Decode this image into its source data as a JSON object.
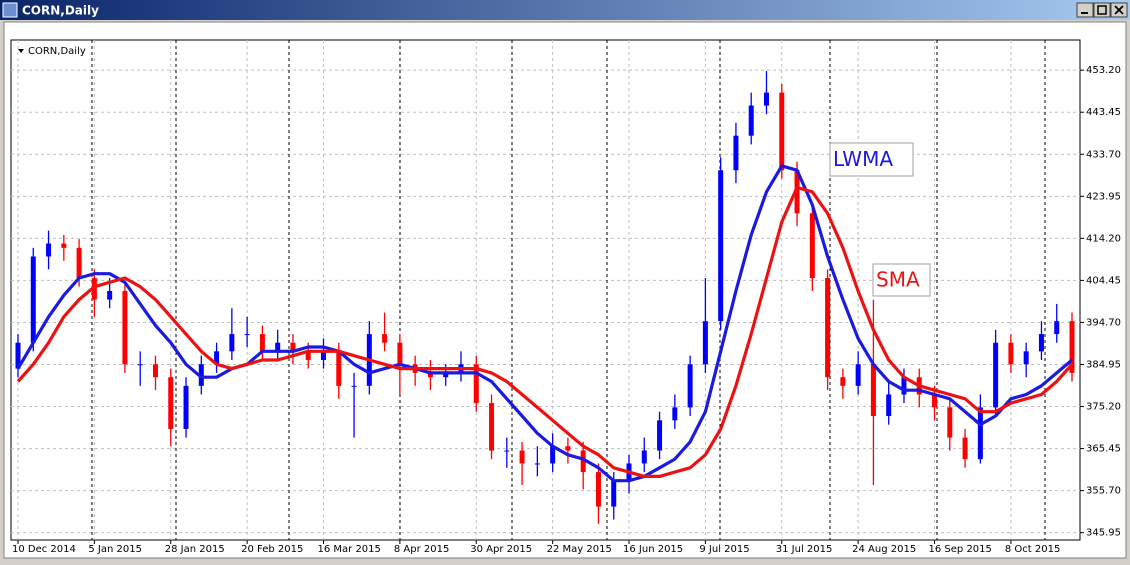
{
  "chart_data": {
    "type": "candlestick",
    "title": "CORN,Daily",
    "label": "CORN,Daily",
    "categories": [
      "10 Dec 2014",
      null,
      null,
      null,
      null,
      "5 Jan 2015",
      null,
      null,
      null,
      null,
      "28 Jan 2015",
      null,
      null,
      null,
      null,
      "20 Feb 2015",
      null,
      null,
      null,
      null,
      "16 Mar 2015",
      null,
      null,
      null,
      null,
      "8 Apr 2015",
      null,
      null,
      null,
      null,
      "30 Apr 2015",
      null,
      null,
      null,
      null,
      "22 May 2015",
      null,
      null,
      null,
      null,
      "16 Jun 2015",
      null,
      null,
      null,
      null,
      "9 Jul 2015",
      null,
      null,
      null,
      null,
      "31 Jul 2015",
      null,
      null,
      null,
      null,
      "24 Aug 2015",
      null,
      null,
      null,
      null,
      "16 Sep 2015",
      null,
      null,
      null,
      null,
      "8 Oct 2015",
      null,
      null,
      null,
      null
    ],
    "open": [
      384,
      390,
      410,
      413,
      412,
      405,
      400,
      402,
      385,
      385,
      382,
      370,
      380,
      385,
      388,
      392,
      392,
      388,
      390,
      388,
      386,
      388,
      380,
      380,
      392,
      390,
      385,
      383,
      382,
      383,
      385,
      376,
      365,
      365,
      362,
      362,
      366,
      365,
      360,
      352,
      358,
      362,
      365,
      372,
      375,
      385,
      395,
      430,
      438,
      445,
      448,
      430,
      420,
      405,
      382,
      380,
      385,
      373,
      378,
      382,
      378,
      375,
      368,
      363,
      375,
      390,
      385,
      388,
      392,
      395
    ],
    "high": [
      392,
      412,
      416,
      415,
      414,
      407,
      405,
      404,
      388,
      387,
      384,
      382,
      387,
      390,
      398,
      396,
      394,
      393,
      392,
      390,
      391,
      390,
      383,
      395,
      397,
      392,
      387,
      386,
      385,
      388,
      387,
      378,
      368,
      367,
      366,
      369,
      368,
      367,
      362,
      360,
      364,
      368,
      374,
      378,
      387,
      405,
      433,
      441,
      448,
      453,
      450,
      432,
      422,
      407,
      384,
      388,
      400,
      381,
      384,
      384,
      380,
      377,
      370,
      378,
      393,
      392,
      390,
      395,
      399,
      397
    ],
    "low": [
      382,
      388,
      407,
      409,
      403,
      396,
      398,
      383,
      380,
      379,
      366,
      368,
      378,
      383,
      386,
      389,
      386,
      386,
      385,
      384,
      384,
      377,
      368,
      378,
      388,
      378,
      380,
      379,
      380,
      381,
      374,
      363,
      361,
      357,
      359,
      360,
      362,
      356,
      348,
      349,
      355,
      360,
      363,
      370,
      373,
      383,
      393,
      427,
      436,
      443,
      428,
      417,
      402,
      379,
      377,
      378,
      357,
      371,
      376,
      375,
      372,
      365,
      361,
      362,
      373,
      383,
      382,
      386,
      390,
      381
    ],
    "close": [
      390,
      410,
      413,
      412,
      405,
      400,
      402,
      385,
      385,
      382,
      370,
      380,
      385,
      388,
      392,
      392,
      388,
      390,
      388,
      386,
      388,
      380,
      380,
      392,
      390,
      385,
      383,
      382,
      383,
      385,
      376,
      365,
      365,
      362,
      362,
      366,
      365,
      360,
      352,
      358,
      362,
      365,
      372,
      375,
      385,
      395,
      430,
      438,
      445,
      448,
      430,
      420,
      405,
      382,
      380,
      385,
      373,
      378,
      382,
      378,
      375,
      368,
      363,
      375,
      390,
      385,
      388,
      392,
      395,
      383
    ],
    "up_color": "#0000ff",
    "down_color": "#ff0000",
    "series": [
      {
        "name": "LWMA",
        "color": "#1a1ae0",
        "values": [
          384,
          390,
          396,
          401,
          405,
          406,
          406,
          404,
          399,
          394,
          390,
          385,
          382,
          382,
          384,
          385,
          388,
          388,
          388,
          389,
          389,
          388,
          385,
          383,
          384,
          385,
          384,
          383,
          383,
          383,
          383,
          381,
          377,
          373,
          369,
          366,
          364,
          363,
          361,
          358,
          358,
          359,
          361,
          363,
          367,
          374,
          388,
          402,
          415,
          425,
          431,
          430,
          422,
          410,
          400,
          391,
          385,
          381,
          379,
          379,
          378,
          377,
          374,
          371,
          373,
          377,
          378,
          380,
          383,
          386
        ]
      },
      {
        "name": "SMA",
        "color": "#ee1111",
        "values": [
          381,
          385,
          390,
          396,
          400,
          403,
          404,
          405,
          403,
          400,
          396,
          392,
          388,
          385,
          384,
          385,
          386,
          386,
          387,
          388,
          388,
          388,
          387,
          386,
          385,
          384,
          384,
          384,
          384,
          384,
          384,
          383,
          381,
          378,
          375,
          372,
          369,
          366,
          364,
          361,
          360,
          359,
          359,
          360,
          361,
          364,
          370,
          380,
          392,
          405,
          418,
          426,
          425,
          420,
          412,
          402,
          393,
          386,
          382,
          380,
          379,
          378,
          377,
          374,
          374,
          376,
          377,
          378,
          381,
          385
        ]
      }
    ],
    "ylim": [
      344.25,
      460.2
    ],
    "yticks": [
      345.95,
      {
        "value": 355.7,
        "label": "355.70"
      },
      365.45,
      {
        "value": 375.2,
        "label": "375.20"
      },
      384.95,
      {
        "value": 394.7,
        "label": "394.70"
      },
      404.45,
      {
        "value": 414.2,
        "label": "414.20"
      },
      423.95,
      {
        "value": 433.7,
        "label": "433.70"
      },
      443.45,
      {
        "value": 453.2,
        "label": "453.20"
      }
    ],
    "grid": true
  }
}
